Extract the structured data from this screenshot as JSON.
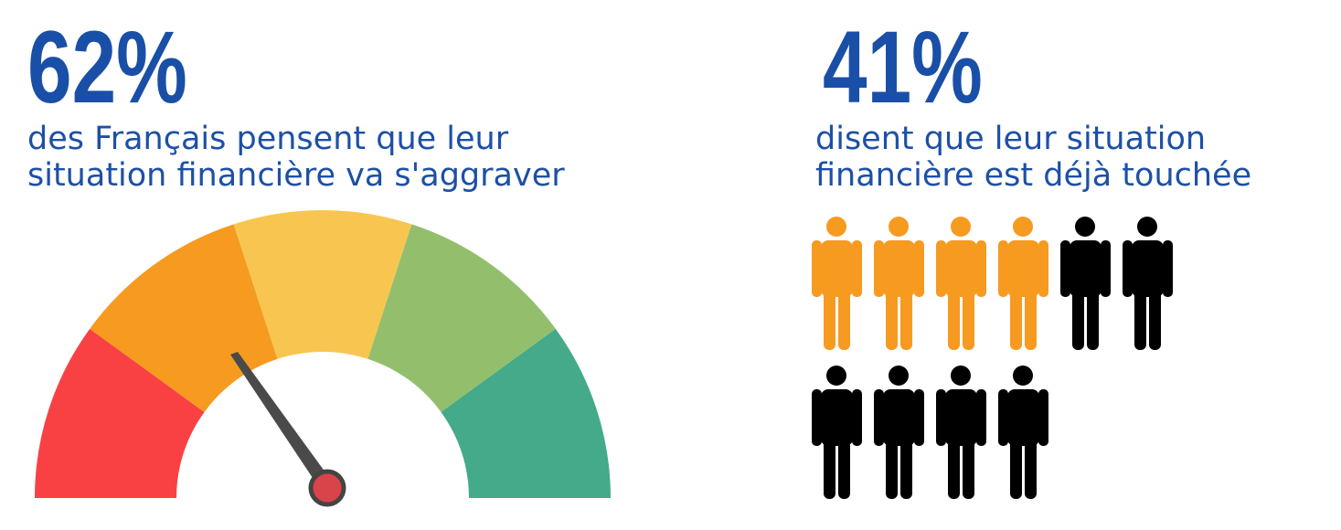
{
  "left": {
    "stat": "62%",
    "caption_lines": [
      "des Français pensent que leur",
      "situation financière va s'aggraver"
    ]
  },
  "right": {
    "stat": "41%",
    "caption_lines": [
      "disent que leur situation",
      "financière est déjà touchée"
    ]
  }
}
